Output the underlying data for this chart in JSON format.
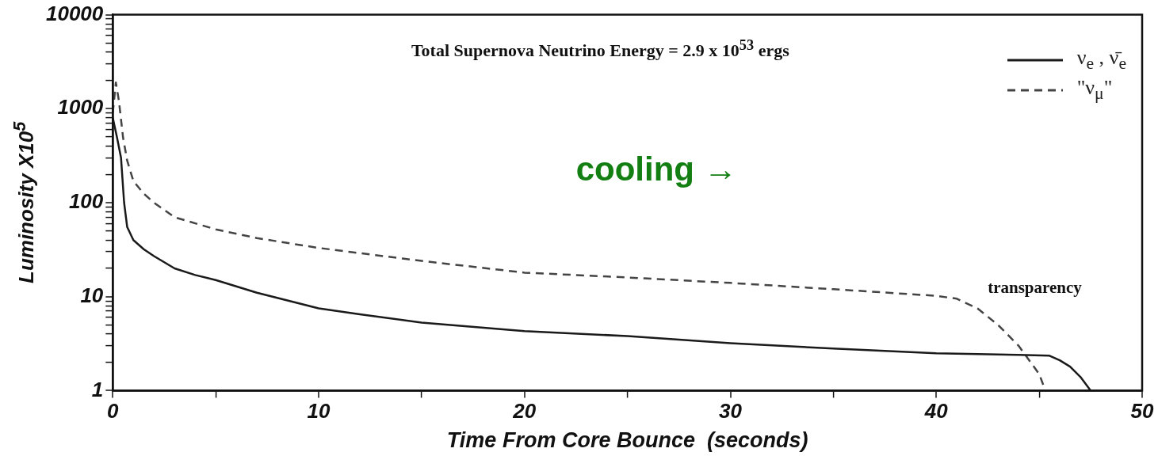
{
  "chart_data": {
    "type": "line",
    "xlabel": "Time From Core Bounce  (seconds)",
    "ylabel": "Luminosity  X10$^{5}$",
    "log": "y",
    "grid": false,
    "legend": "top right",
    "marker": "none",
    "xlim": [
      0,
      50
    ],
    "xticks": [
      0,
      {
        "value": 5,
        "label": null
      },
      10,
      {
        "value": 15,
        "label": null
      },
      20,
      {
        "value": 25,
        "label": null
      },
      30,
      {
        "value": 35,
        "label": null
      },
      40,
      {
        "value": 45,
        "label": null
      },
      50
    ],
    "ylim": [
      1,
      10000
    ],
    "yticks": [
      1,
      {
        "value": 2,
        "label": null
      },
      {
        "value": 3,
        "label": null
      },
      {
        "value": 4,
        "label": null
      },
      {
        "value": 5,
        "label": null
      },
      {
        "value": 6,
        "label": null
      },
      {
        "value": 7,
        "label": null
      },
      {
        "value": 8,
        "label": null
      },
      {
        "value": 9,
        "label": null
      },
      10,
      {
        "value": 20,
        "label": null
      },
      {
        "value": 30,
        "label": null
      },
      {
        "value": 40,
        "label": null
      },
      {
        "value": 50,
        "label": null
      },
      {
        "value": 60,
        "label": null
      },
      {
        "value": 70,
        "label": null
      },
      {
        "value": 80,
        "label": null
      },
      {
        "value": 90,
        "label": null
      },
      100,
      {
        "value": 200,
        "label": null
      },
      {
        "value": 300,
        "label": null
      },
      {
        "value": 400,
        "label": null
      },
      {
        "value": 500,
        "label": null
      },
      {
        "value": 600,
        "label": null
      },
      {
        "value": 700,
        "label": null
      },
      {
        "value": 800,
        "label": null
      },
      {
        "value": 900,
        "label": null
      },
      1000,
      {
        "value": 2000,
        "label": null
      },
      {
        "value": 3000,
        "label": null
      },
      {
        "value": 4000,
        "label": null
      },
      {
        "value": 5000,
        "label": null
      },
      {
        "value": 6000,
        "label": null
      },
      {
        "value": 7000,
        "label": null
      },
      {
        "value": 8000,
        "label": null
      },
      {
        "value": 9000,
        "label": null
      },
      10000
    ],
    "series": [
      {
        "name": "ν$_{e}$ , ν̄$_{e}$",
        "color": "#1a1a1a",
        "line_style": "solid",
        "x": [
          0,
          0.2,
          0.4,
          0.55,
          0.7,
          1,
          1.5,
          2,
          3,
          4,
          5,
          7,
          10,
          12,
          15,
          20,
          25,
          30,
          35,
          40,
          44,
          45.5,
          46,
          46.5,
          47,
          47.5
        ],
        "values": [
          800,
          500,
          300,
          100,
          55,
          40,
          32,
          27,
          20,
          17,
          15,
          11,
          7.5,
          6.5,
          5.3,
          4.3,
          3.8,
          3.2,
          2.8,
          2.5,
          2.4,
          2.35,
          2.1,
          1.8,
          1.4,
          1.0
        ]
      },
      {
        "name": "\"ν$_{μ}$\"",
        "color": "#444444",
        "line_style": "dashed",
        "x": [
          0,
          0.15,
          0.3,
          0.5,
          0.7,
          1,
          1.5,
          2,
          3,
          5,
          7,
          10,
          15,
          20,
          25,
          30,
          35,
          40,
          41,
          42,
          43,
          44,
          45,
          45.3
        ],
        "values": [
          900,
          1900,
          1200,
          490,
          280,
          170,
          125,
          100,
          70,
          52,
          42,
          33,
          24,
          18,
          16,
          14,
          12,
          10.2,
          9.5,
          7.5,
          5,
          3,
          1.5,
          1
        ]
      }
    ],
    "annotations": [
      "Total Supernova Neutrino Energy = 2.9 x 10$^{53}$ ergs",
      "cooling →",
      "transparency"
    ]
  }
}
